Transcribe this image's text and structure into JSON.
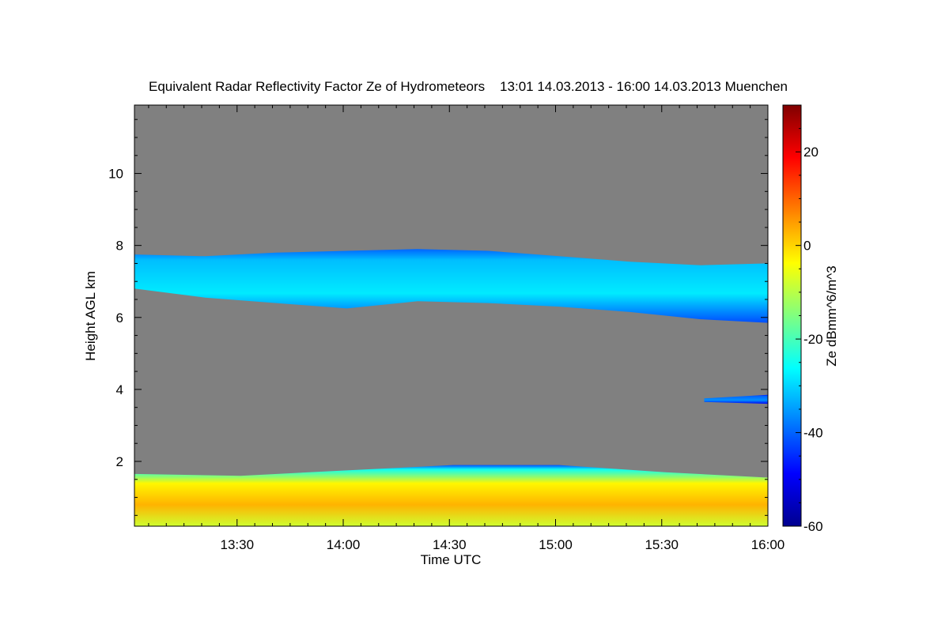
{
  "chart_data": {
    "type": "heatmap",
    "title": "Equivalent Radar Reflectivity Factor Ze of Hydrometeors    13:01 14.03.2013 - 16:00 14.03.2013 Muenchen",
    "xlabel": "Time UTC",
    "ylabel": "Height AGL km",
    "xlim": [
      "13:01",
      "16:00"
    ],
    "ylim": [
      0.2,
      11.9
    ],
    "x_ticks": [
      "13:30",
      "14:00",
      "14:30",
      "15:00",
      "15:30",
      "16:00"
    ],
    "x_tick_minutes": [
      29,
      59,
      89,
      119,
      149,
      179
    ],
    "y_ticks": [
      "2",
      "4",
      "6",
      "8",
      "10"
    ],
    "y_tick_values": [
      2,
      4,
      6,
      8,
      10
    ],
    "background_color": "#808080",
    "colorbar": {
      "label": "Ze dBmm^6/m^3",
      "range": [
        -60,
        30
      ],
      "ticks": [
        "20",
        "0",
        "-20",
        "-40",
        "-60"
      ],
      "tick_values": [
        20,
        0,
        -20,
        -40,
        -60
      ],
      "colors": [
        "#00008f",
        "#0000ff",
        "#0080ff",
        "#00ffff",
        "#80ff80",
        "#ffff00",
        "#ff8000",
        "#ff0000",
        "#800000"
      ]
    },
    "layers": [
      {
        "name": "upper cloud layer",
        "x_minutes": [
          0,
          20,
          40,
          60,
          80,
          100,
          120,
          140,
          160,
          179
        ],
        "base_km": [
          6.8,
          6.55,
          6.4,
          6.25,
          6.45,
          6.4,
          6.3,
          6.15,
          5.95,
          5.85
        ],
        "top_km": [
          7.75,
          7.7,
          7.8,
          7.85,
          7.9,
          7.85,
          7.7,
          7.55,
          7.45,
          7.5
        ],
        "ze_dbz": -30
      },
      {
        "name": "mid-level streak",
        "x_minutes": [
          161,
          179
        ],
        "base_km": [
          3.65,
          3.6
        ],
        "top_km": [
          3.75,
          3.85
        ],
        "ze_dbz": -38
      },
      {
        "name": "low precipitation layer",
        "x_minutes": [
          0,
          30,
          60,
          90,
          120,
          150,
          179
        ],
        "base_km": [
          0.2,
          0.2,
          0.2,
          0.2,
          0.2,
          0.2,
          0.2
        ],
        "top_km": [
          1.65,
          1.6,
          1.75,
          1.9,
          1.9,
          1.7,
          1.55
        ],
        "ze_dbz": -5
      }
    ]
  }
}
